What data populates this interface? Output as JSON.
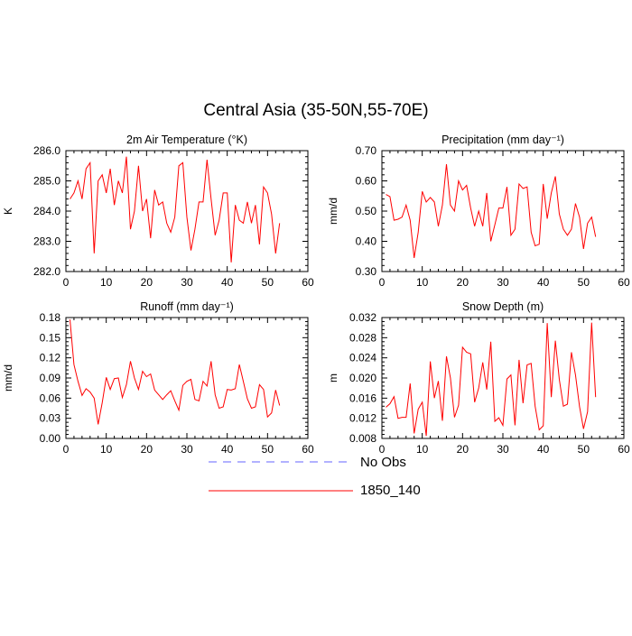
{
  "page_title": "Central Asia (35-50N,55-70E)",
  "legend": {
    "items": [
      {
        "label": "No Obs",
        "color": "#6666ff",
        "style": "dashed"
      },
      {
        "label": "1850_140",
        "color": "#ff0000",
        "style": "solid"
      }
    ]
  },
  "colors": {
    "series": "#ff0000",
    "axes": "#000000"
  },
  "chart_data": [
    {
      "type": "line",
      "title": "2m Air Temperature (°K)",
      "xlabel": "",
      "ylabel": "K",
      "xlim": [
        0,
        60
      ],
      "ylim": [
        282.0,
        286.0
      ],
      "xticks": [
        0,
        10,
        20,
        30,
        40,
        50,
        60
      ],
      "yticks": [
        282.0,
        283.0,
        284.0,
        285.0,
        286.0
      ],
      "ytick_labels": [
        "282.0",
        "283.0",
        "284.0",
        "285.0",
        "286.0"
      ],
      "series": [
        {
          "x": [
            1,
            2,
            3,
            4,
            5,
            6,
            7,
            8,
            9,
            10,
            11,
            12,
            13,
            14,
            15,
            16,
            17,
            18,
            19,
            20,
            21,
            22,
            23,
            24,
            25,
            26,
            27,
            28,
            29,
            30,
            31,
            32,
            33,
            34,
            35,
            36,
            37,
            38,
            39,
            40,
            41,
            42,
            43,
            44,
            45,
            46,
            47,
            48,
            49,
            50,
            51,
            52,
            53
          ],
          "values": [
            284.4,
            284.6,
            285.0,
            284.4,
            285.4,
            285.6,
            282.6,
            285.0,
            285.2,
            284.6,
            285.4,
            284.2,
            285.0,
            284.6,
            285.8,
            283.4,
            284.0,
            285.5,
            284.0,
            284.4,
            283.1,
            284.7,
            284.2,
            284.3,
            283.6,
            283.3,
            283.8,
            285.5,
            285.6,
            283.8,
            282.7,
            283.4,
            284.3,
            284.3,
            285.7,
            284.4,
            283.2,
            283.7,
            284.6,
            284.6,
            282.3,
            284.2,
            283.7,
            283.6,
            284.3,
            283.6,
            284.2,
            282.9,
            284.8,
            284.6,
            283.9,
            282.6,
            283.6
          ]
        }
      ]
    },
    {
      "type": "line",
      "title": "Precipitation (mm day⁻¹)",
      "xlabel": "",
      "ylabel": "mm/d",
      "xlim": [
        0,
        60
      ],
      "ylim": [
        0.3,
        0.7
      ],
      "xticks": [
        0,
        10,
        20,
        30,
        40,
        50,
        60
      ],
      "yticks": [
        0.3,
        0.4,
        0.5,
        0.6,
        0.7
      ],
      "ytick_labels": [
        "0.30",
        "0.40",
        "0.50",
        "0.60",
        "0.70"
      ],
      "series": [
        {
          "x": [
            1,
            2,
            3,
            4,
            5,
            6,
            7,
            8,
            9,
            10,
            11,
            12,
            13,
            14,
            15,
            16,
            17,
            18,
            19,
            20,
            21,
            22,
            23,
            24,
            25,
            26,
            27,
            28,
            29,
            30,
            31,
            32,
            33,
            34,
            35,
            36,
            37,
            38,
            39,
            40,
            41,
            42,
            43,
            44,
            45,
            46,
            47,
            48,
            49,
            50,
            51,
            52,
            53
          ],
          "values": [
            0.555,
            0.548,
            0.47,
            0.473,
            0.48,
            0.52,
            0.47,
            0.345,
            0.43,
            0.565,
            0.53,
            0.545,
            0.53,
            0.45,
            0.52,
            0.655,
            0.52,
            0.5,
            0.6,
            0.57,
            0.585,
            0.51,
            0.45,
            0.5,
            0.45,
            0.56,
            0.4,
            0.455,
            0.51,
            0.51,
            0.58,
            0.42,
            0.44,
            0.59,
            0.575,
            0.58,
            0.43,
            0.385,
            0.39,
            0.59,
            0.475,
            0.56,
            0.615,
            0.49,
            0.44,
            0.42,
            0.44,
            0.525,
            0.48,
            0.375,
            0.46,
            0.48,
            0.415
          ]
        }
      ]
    },
    {
      "type": "line",
      "title": "Runoff (mm day⁻¹)",
      "xlabel": "",
      "ylabel": "mm/d",
      "xlim": [
        0,
        60
      ],
      "ylim": [
        0.0,
        0.18
      ],
      "xticks": [
        0,
        10,
        20,
        30,
        40,
        50,
        60
      ],
      "yticks": [
        0.0,
        0.03,
        0.06,
        0.09,
        0.12,
        0.15,
        0.18
      ],
      "ytick_labels": [
        "0.00",
        "0.03",
        "0.06",
        "0.09",
        "0.12",
        "0.15",
        "0.18"
      ],
      "series": [
        {
          "x": [
            1,
            2,
            3,
            4,
            5,
            6,
            7,
            8,
            9,
            10,
            11,
            12,
            13,
            14,
            15,
            16,
            17,
            18,
            19,
            20,
            21,
            22,
            23,
            24,
            25,
            26,
            27,
            28,
            29,
            30,
            31,
            32,
            33,
            34,
            35,
            36,
            37,
            38,
            39,
            40,
            41,
            42,
            43,
            44,
            45,
            46,
            47,
            48,
            49,
            50,
            51,
            52,
            53
          ],
          "values": [
            0.177,
            0.11,
            0.085,
            0.064,
            0.074,
            0.069,
            0.06,
            0.021,
            0.053,
            0.091,
            0.073,
            0.089,
            0.09,
            0.061,
            0.08,
            0.115,
            0.09,
            0.073,
            0.1,
            0.092,
            0.096,
            0.072,
            0.065,
            0.058,
            0.065,
            0.071,
            0.056,
            0.042,
            0.079,
            0.085,
            0.088,
            0.058,
            0.056,
            0.085,
            0.078,
            0.115,
            0.065,
            0.045,
            0.047,
            0.073,
            0.072,
            0.074,
            0.11,
            0.085,
            0.059,
            0.045,
            0.047,
            0.08,
            0.073,
            0.032,
            0.038,
            0.072,
            0.049
          ]
        }
      ]
    },
    {
      "type": "line",
      "title": "Snow Depth (m)",
      "xlabel": "",
      "ylabel": "m",
      "xlim": [
        0,
        60
      ],
      "ylim": [
        0.008,
        0.032
      ],
      "xticks": [
        0,
        10,
        20,
        30,
        40,
        50,
        60
      ],
      "yticks": [
        0.008,
        0.012,
        0.016,
        0.02,
        0.024,
        0.028,
        0.032
      ],
      "ytick_labels": [
        "0.008",
        "0.012",
        "0.016",
        "0.020",
        "0.024",
        "0.028",
        "0.032"
      ],
      "series": [
        {
          "x": [
            1,
            2,
            3,
            4,
            5,
            6,
            7,
            8,
            9,
            10,
            11,
            12,
            13,
            14,
            15,
            16,
            17,
            18,
            19,
            20,
            21,
            22,
            23,
            24,
            25,
            26,
            27,
            28,
            29,
            30,
            31,
            32,
            33,
            34,
            35,
            36,
            37,
            38,
            39,
            40,
            41,
            42,
            43,
            44,
            45,
            46,
            47,
            48,
            49,
            50,
            51,
            52,
            53
          ],
          "values": [
            0.0142,
            0.0149,
            0.0163,
            0.012,
            0.0122,
            0.0122,
            0.0189,
            0.009,
            0.0138,
            0.0152,
            0.0085,
            0.0233,
            0.016,
            0.0194,
            0.0115,
            0.0243,
            0.02,
            0.0122,
            0.0146,
            0.0261,
            0.0251,
            0.0248,
            0.0152,
            0.018,
            0.0231,
            0.0177,
            0.0272,
            0.0114,
            0.0121,
            0.0106,
            0.0198,
            0.0206,
            0.0106,
            0.0236,
            0.015,
            0.0226,
            0.0229,
            0.0144,
            0.0097,
            0.0105,
            0.0309,
            0.0162,
            0.0274,
            0.0197,
            0.0144,
            0.0148,
            0.0251,
            0.0206,
            0.0143,
            0.0099,
            0.0133,
            0.031,
            0.0162
          ]
        }
      ]
    }
  ]
}
